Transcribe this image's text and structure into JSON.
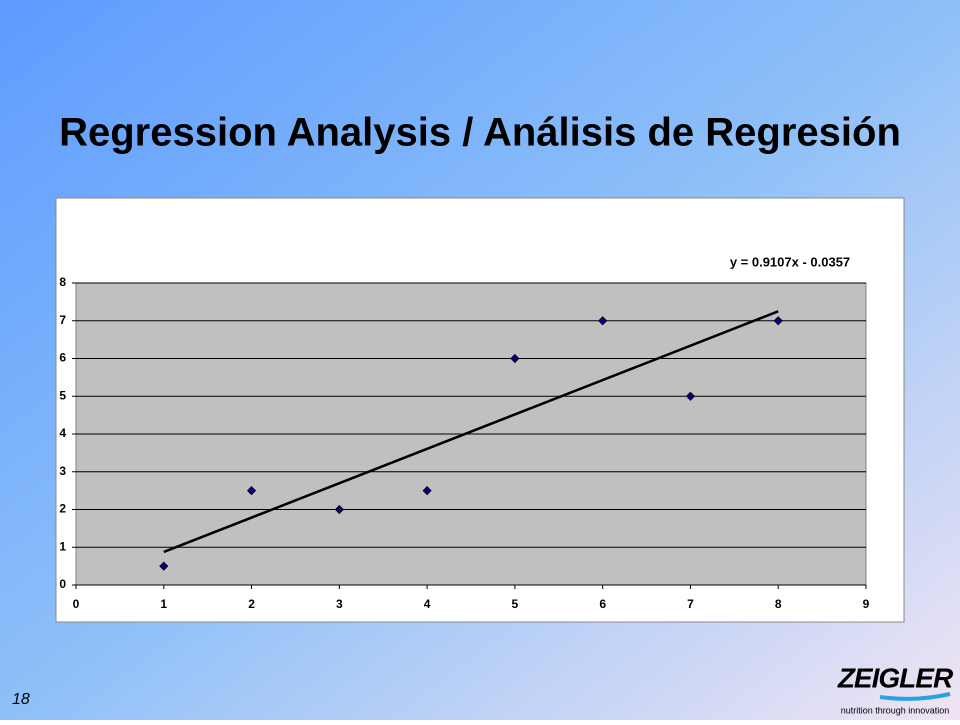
{
  "chart_data": {
    "type": "scatter",
    "title": "Regression Analysis / Análisis de Regresión",
    "x": [
      1,
      2,
      3,
      4,
      5,
      6,
      7,
      8
    ],
    "values": [
      0.5,
      2.5,
      2,
      2.5,
      6,
      7,
      5,
      7
    ],
    "color": "#000080",
    "xlim": [
      0,
      9
    ],
    "xticks": [
      0,
      1,
      2,
      3,
      4,
      5,
      6,
      7,
      8,
      9
    ],
    "ylim": [
      0,
      8
    ],
    "yticks": [
      0,
      1,
      2,
      3,
      4,
      5,
      6,
      7,
      8
    ],
    "grid": true,
    "trendline": {
      "equation": "y = 0.9107x - 0.0357",
      "slope": 0.9107,
      "intercept": -0.0357
    }
  },
  "page_number": "18",
  "logo": {
    "name": "ZEIGLER",
    "tagline": "nutrition through innovation"
  }
}
